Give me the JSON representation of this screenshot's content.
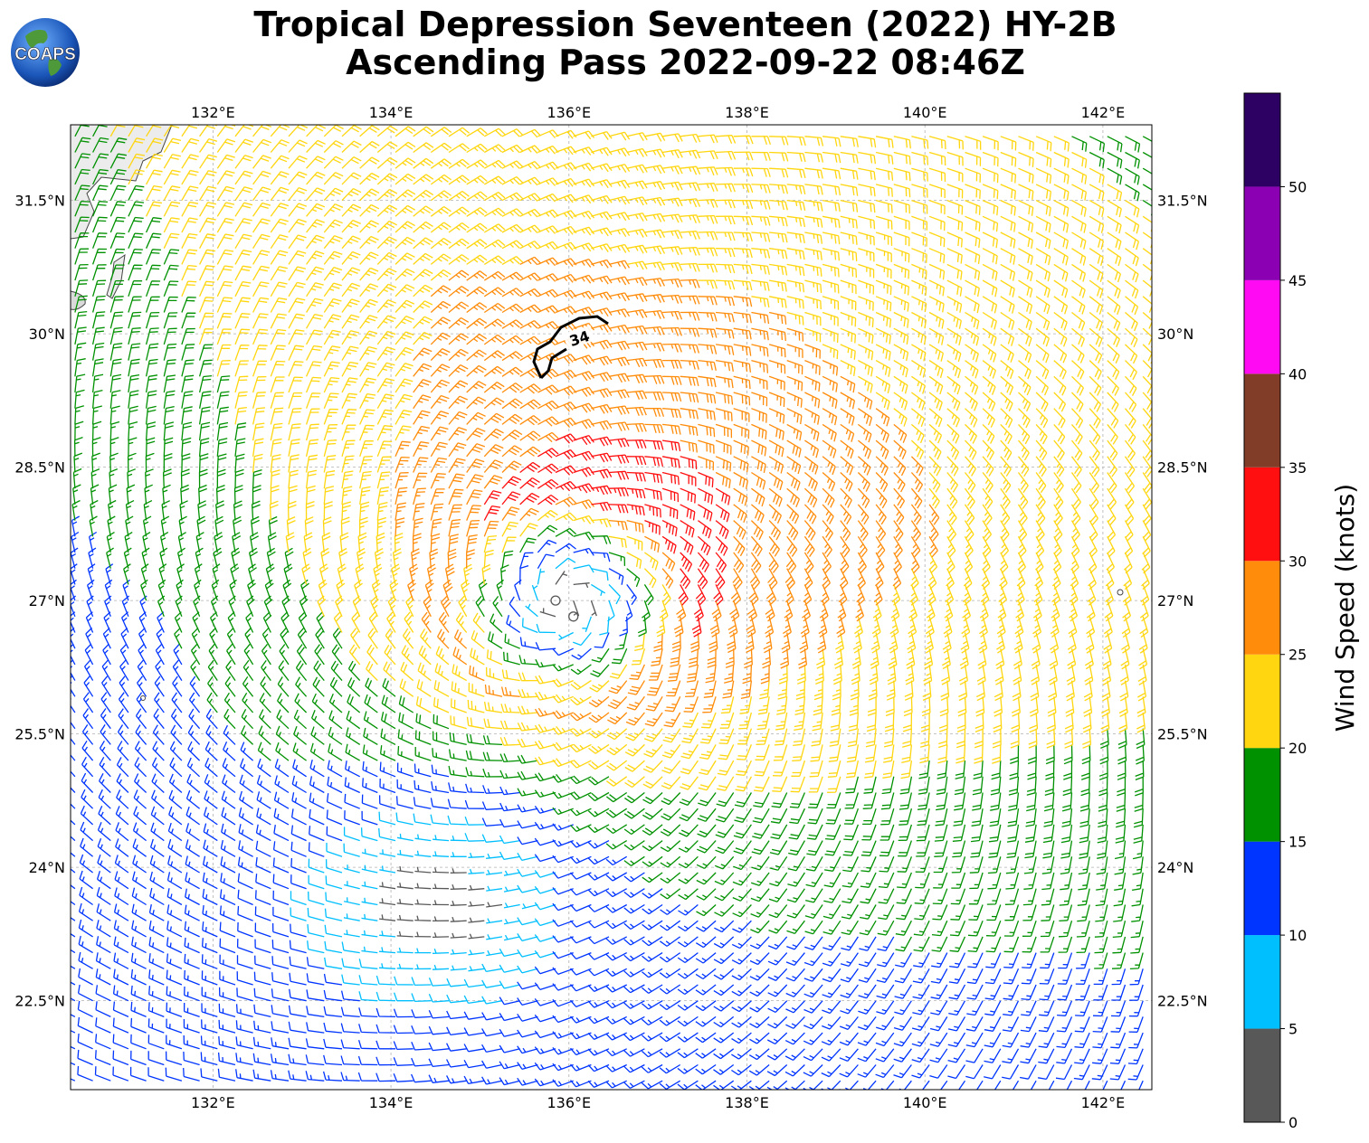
{
  "title": {
    "line1": "Tropical Depression Seventeen (2022) HY-2B",
    "line2": "Ascending Pass 2022-09-22 08:46Z"
  },
  "logo": {
    "text": "COAPS",
    "icon": "earth-globe-icon"
  },
  "map": {
    "lon_range": [
      130.4,
      142.55
    ],
    "lat_range": [
      21.5,
      32.35
    ],
    "lon_ticks": [
      "132°E",
      "134°E",
      "136°E",
      "138°E",
      "140°E",
      "142°E"
    ],
    "lon_tick_values": [
      132,
      134,
      136,
      138,
      140,
      142
    ],
    "lat_ticks": [
      "31.5°N",
      "30°N",
      "28.5°N",
      "27°N",
      "25.5°N",
      "24°N",
      "22.5°N"
    ],
    "lat_tick_values": [
      31.5,
      30,
      28.5,
      27,
      25.5,
      24,
      22.5
    ],
    "storm_center": {
      "lon": 136.0,
      "lat": 27.0
    },
    "contour_label": "34",
    "gridlines": true
  },
  "colorbar": {
    "label": "Wind Speed (knots)",
    "ticks": [
      "0",
      "5",
      "10",
      "15",
      "20",
      "25",
      "30",
      "35",
      "40",
      "45",
      "50"
    ],
    "tick_values": [
      0,
      5,
      10,
      15,
      20,
      25,
      30,
      35,
      40,
      45,
      50
    ],
    "max": 55,
    "bins": [
      {
        "from": 0,
        "to": 5,
        "color": "#585858"
      },
      {
        "from": 5,
        "to": 10,
        "color": "#00bfff"
      },
      {
        "from": 10,
        "to": 15,
        "color": "#0035ff"
      },
      {
        "from": 15,
        "to": 20,
        "color": "#009100"
      },
      {
        "from": 20,
        "to": 25,
        "color": "#ffd60f"
      },
      {
        "from": 25,
        "to": 30,
        "color": "#ff8c0a"
      },
      {
        "from": 30,
        "to": 35,
        "color": "#ff0f0f"
      },
      {
        "from": 35,
        "to": 40,
        "color": "#823d28"
      },
      {
        "from": 40,
        "to": 45,
        "color": "#ff0af2"
      },
      {
        "from": 45,
        "to": 50,
        "color": "#8c00b4"
      },
      {
        "from": 50,
        "to": 55,
        "color": "#2d0064"
      }
    ]
  }
}
